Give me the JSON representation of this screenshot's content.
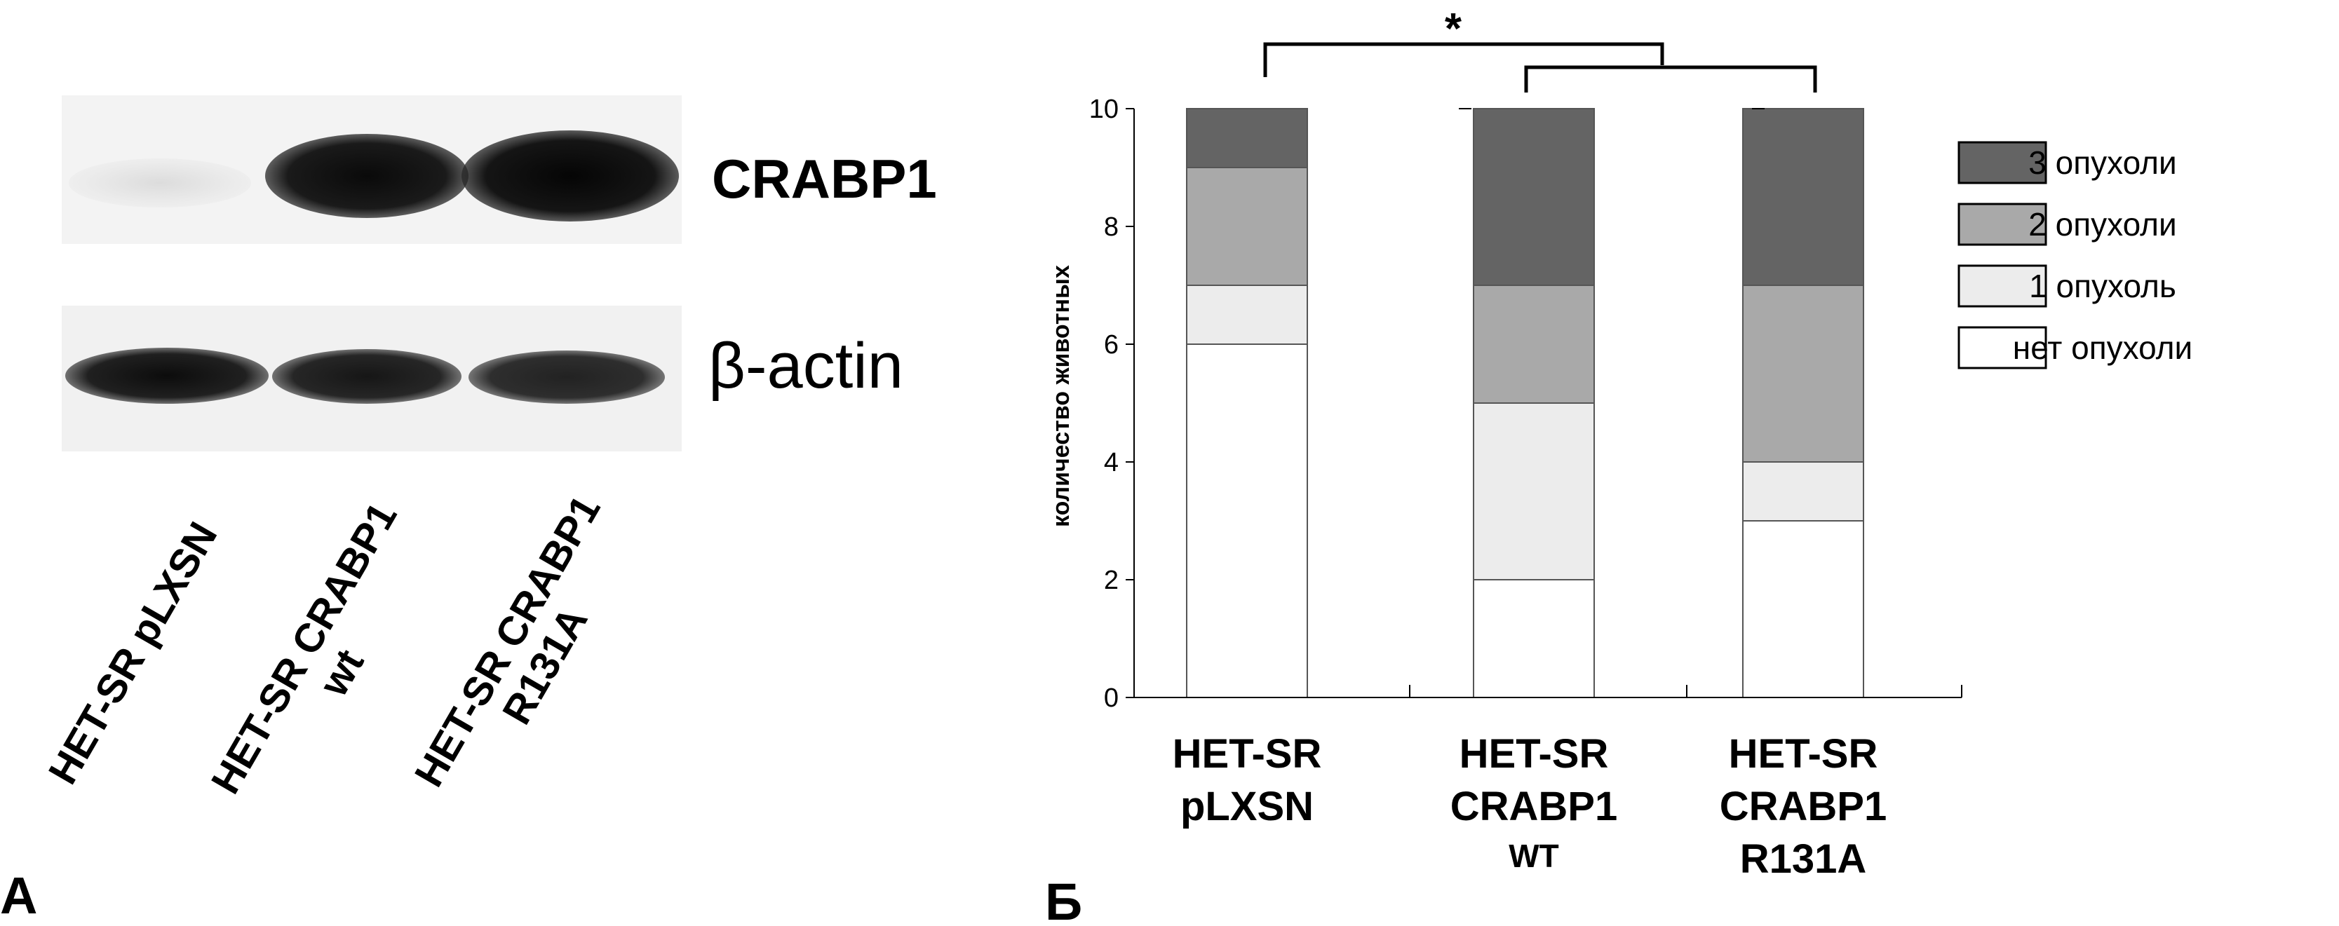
{
  "panel_a": {
    "letter": "А",
    "protein_labels": [
      "CRABP1",
      "β-actin"
    ],
    "lane_labels": [
      [
        "HET-SR pLXSN"
      ],
      [
        "HET-SR CRABP1",
        "wt"
      ],
      [
        "HET-SR CRABP1",
        "R131A"
      ]
    ]
  },
  "panel_b": {
    "letter": "Б",
    "significance_mark": "*"
  },
  "chart_data": {
    "type": "bar",
    "stacked": true,
    "categories": [
      [
        "HET-SR",
        "pLXSN"
      ],
      [
        "HET-SR",
        "CRABP1",
        "WT"
      ],
      [
        "HET-SR",
        "CRABP1",
        "R131A"
      ]
    ],
    "ylabel": "количество животных",
    "ylim": [
      0,
      10
    ],
    "yticks": [
      0,
      2,
      4,
      6,
      8,
      10
    ],
    "series": [
      {
        "name": "нет опухоли",
        "values": [
          6,
          2,
          3
        ],
        "color": "#ffffff"
      },
      {
        "name": "1 опухоль",
        "values": [
          1,
          3,
          1
        ],
        "color": "#ececec"
      },
      {
        "name": "2 опухоли",
        "values": [
          2,
          2,
          3
        ],
        "color": "#a9a9a9"
      },
      {
        "name": "3 опухоли",
        "values": [
          1,
          3,
          3
        ],
        "color": "#646464"
      }
    ],
    "legend_position": "right",
    "annotation": "*"
  }
}
